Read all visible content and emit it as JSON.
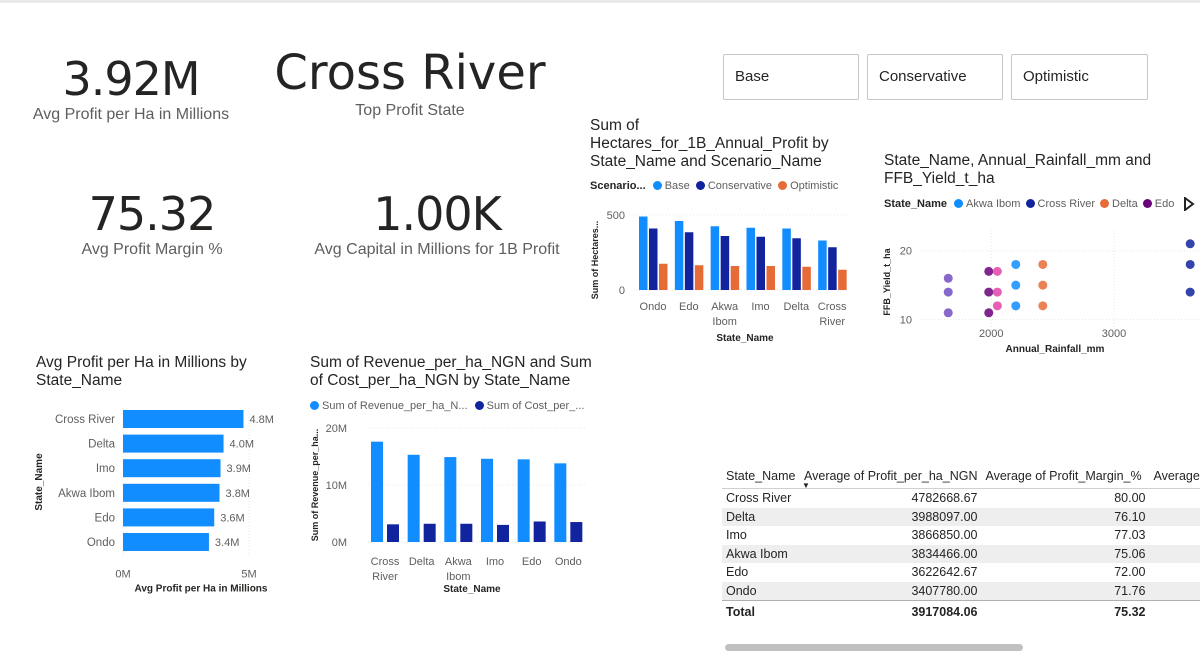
{
  "kpis": {
    "avg_profit": {
      "value": "3.92M",
      "caption": "Avg Profit per Ha in Millions"
    },
    "top_state": {
      "value": "Cross River",
      "caption": "Top Profit State"
    },
    "avg_margin": {
      "value": "75.32",
      "caption": "Avg Profit Margin %"
    },
    "avg_capital": {
      "value": "1.00K",
      "caption": "Avg Capital in Millions for 1B Profit"
    }
  },
  "slicer": {
    "options": [
      "Base",
      "Conservative",
      "Optimistic"
    ]
  },
  "colors": {
    "base": "#118dff",
    "conservative": "#12239e",
    "optimistic": "#e66c37",
    "akwa_ibom": "#118dff",
    "cross_river": "#12239e",
    "delta": "#e66c37",
    "edo": "#6b007b",
    "imo": "#e044a7",
    "ondo": "#744ec2"
  },
  "chart_data": [
    {
      "type": "bar",
      "title": "Sum of Hectares_for_1B_Annual_Profit by State_Name and Scenario_Name",
      "legend_title": "Scenario...",
      "categories": [
        "Ondo",
        "Edo",
        "Akwa Ibom",
        "Imo",
        "Delta",
        "Cross River"
      ],
      "xlabel": "State_Name",
      "ylabel": "Sum of Hectares...",
      "yticks": [
        "0",
        "500"
      ],
      "ylim": [
        0,
        560
      ],
      "series": [
        {
          "name": "Base",
          "values": [
            490,
            460,
            425,
            415,
            410,
            330
          ]
        },
        {
          "name": "Conservative",
          "values": [
            410,
            385,
            360,
            355,
            345,
            285
          ]
        },
        {
          "name": "Optimistic",
          "values": [
            175,
            165,
            160,
            160,
            155,
            135
          ]
        }
      ]
    },
    {
      "type": "scatter",
      "title": "State_Name, Annual_Rainfall_mm and FFB_Yield_t_ha",
      "legend_title": "State_Name",
      "legend": [
        "Akwa Ibom",
        "Cross River",
        "Delta",
        "Edo"
      ],
      "xlabel": "Annual_Rainfall_mm",
      "ylabel": "FFB_Yield_t_ha",
      "xticks": [
        "2000",
        "3000"
      ],
      "yticks": [
        "10",
        "20"
      ],
      "xlim": [
        1420,
        3700
      ],
      "ylim": [
        8.5,
        23
      ],
      "points": [
        {
          "state": "Ondo",
          "x": 1650,
          "y": 11
        },
        {
          "state": "Ondo",
          "x": 1650,
          "y": 14
        },
        {
          "state": "Ondo",
          "x": 1650,
          "y": 16
        },
        {
          "state": "Edo",
          "x": 1980,
          "y": 11
        },
        {
          "state": "Edo",
          "x": 1980,
          "y": 14
        },
        {
          "state": "Edo",
          "x": 1980,
          "y": 17
        },
        {
          "state": "Imo",
          "x": 2050,
          "y": 12
        },
        {
          "state": "Imo",
          "x": 2050,
          "y": 14
        },
        {
          "state": "Imo",
          "x": 2050,
          "y": 17
        },
        {
          "state": "Akwa Ibom",
          "x": 2200,
          "y": 12
        },
        {
          "state": "Akwa Ibom",
          "x": 2200,
          "y": 15
        },
        {
          "state": "Akwa Ibom",
          "x": 2200,
          "y": 18
        },
        {
          "state": "Delta",
          "x": 2420,
          "y": 12
        },
        {
          "state": "Delta",
          "x": 2420,
          "y": 15
        },
        {
          "state": "Delta",
          "x": 2420,
          "y": 18
        },
        {
          "state": "Cross River",
          "x": 3620,
          "y": 14
        },
        {
          "state": "Cross River",
          "x": 3620,
          "y": 18
        },
        {
          "state": "Cross River",
          "x": 3620,
          "y": 21
        }
      ]
    },
    {
      "type": "bar",
      "orientation": "horizontal",
      "title": "Avg Profit per Ha in Millions by State_Name",
      "categories": [
        "Cross River",
        "Delta",
        "Imo",
        "Akwa Ibom",
        "Edo",
        "Ondo"
      ],
      "values": [
        4.78,
        3.99,
        3.87,
        3.83,
        3.62,
        3.41
      ],
      "data_labels": [
        "4.8M",
        "4.0M",
        "3.9M",
        "3.8M",
        "3.6M",
        "3.4M"
      ],
      "xlabel": "Avg Profit per Ha in Millions",
      "ylabel": "State_Name",
      "xticks": [
        "0M",
        "5M"
      ],
      "xlim": [
        0,
        5
      ]
    },
    {
      "type": "bar",
      "title": "Sum of Revenue_per_ha_NGN and Sum of Cost_per_ha_NGN by State_Name",
      "legend": [
        "Sum of Revenue_per_ha_N...",
        "Sum of Cost_per_..."
      ],
      "categories": [
        "Cross River",
        "Delta",
        "Akwa Ibom",
        "Imo",
        "Edo",
        "Ondo"
      ],
      "xlabel": "State_Name",
      "ylabel": "Sum of Revenue_per_ha...",
      "yticks": [
        "0M",
        "10M",
        "20M"
      ],
      "ylim": [
        0,
        20
      ],
      "series": [
        {
          "name": "Sum of Revenue_per_ha_NGN",
          "values": [
            17.6,
            15.3,
            14.9,
            14.6,
            14.5,
            13.8
          ]
        },
        {
          "name": "Sum of Cost_per_ha_NGN",
          "values": [
            3.1,
            3.2,
            3.2,
            3.0,
            3.6,
            3.5
          ]
        }
      ]
    },
    {
      "type": "table",
      "headers": [
        "State_Name",
        "Average of Profit_per_ha_NGN",
        "Average of Profit_Margin_%",
        "Average o"
      ],
      "rows": [
        [
          "Cross River",
          "4782668.67",
          "80.00"
        ],
        [
          "Delta",
          "3988097.00",
          "76.10"
        ],
        [
          "Imo",
          "3866850.00",
          "77.03"
        ],
        [
          "Akwa Ibom",
          "3834466.00",
          "75.06"
        ],
        [
          "Edo",
          "3622642.67",
          "72.00"
        ],
        [
          "Ondo",
          "3407780.00",
          "71.76"
        ]
      ],
      "total": [
        "Total",
        "3917084.06",
        "75.32"
      ]
    }
  ]
}
